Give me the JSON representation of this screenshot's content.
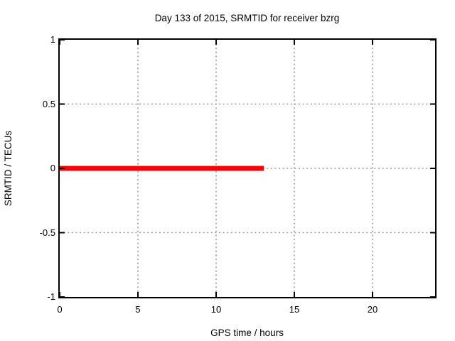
{
  "figure": {
    "background": "#ffffff"
  },
  "chart_data": {
    "type": "line",
    "title": "Day 133 of 2015, SRMTID for receiver bzrg",
    "xlabel": "GPS time / hours",
    "ylabel": "SRMTID / TECUs",
    "xlim": [
      0,
      24
    ],
    "ylim": [
      -1,
      1
    ],
    "xticks": [
      0,
      5,
      10,
      15,
      20
    ],
    "xtick_labels": [
      "0",
      "5",
      "10",
      "15",
      "20"
    ],
    "yticks": [
      -1,
      -0.5,
      0,
      0.5,
      1
    ],
    "ytick_labels": [
      "-1",
      "-0.5",
      "0",
      "0.5",
      "1"
    ],
    "grid": true,
    "grid_color": "#989898",
    "border_color": "#000000",
    "tick_color": "#000000",
    "legend": "none",
    "series": [
      {
        "name": "SRMTID",
        "color": "#ff0000",
        "linewidth": 7,
        "x": [
          0,
          13.05
        ],
        "y": [
          0,
          0
        ]
      }
    ]
  }
}
